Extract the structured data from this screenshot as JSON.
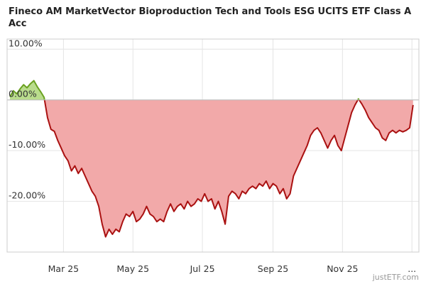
{
  "chart_data": {
    "type": "area",
    "title": "Fineco AM MarketVector Bioproduction Tech and Tools ESG UCITS ETF Class A Acc",
    "xlabel": "",
    "ylabel": "",
    "y_unit": "%",
    "ylim": [
      -30,
      12
    ],
    "y_ticks": [
      {
        "value": 10,
        "label": "10.00%"
      },
      {
        "value": 0,
        "label": "0.00%"
      },
      {
        "value": -10,
        "label": "-10.00%"
      },
      {
        "value": -20,
        "label": "-20.00%"
      }
    ],
    "x_ticks": [
      {
        "date": "2025-03-01",
        "label": "Mar 25"
      },
      {
        "date": "2025-05-01",
        "label": "May 25"
      },
      {
        "date": "2025-07-01",
        "label": "Jul 25"
      },
      {
        "date": "2025-09-01",
        "label": "Sep 25"
      },
      {
        "date": "2025-11-01",
        "label": "Nov 25"
      },
      {
        "date": "2026-01-01",
        "label": "..."
      }
    ],
    "x_range": [
      "2025-01-13",
      "2026-01-04"
    ],
    "grid": true,
    "positive_color": "#6aa120",
    "positive_fill": "#b9dc8c",
    "negative_color": "#aa1111",
    "negative_fill": "#f2a9a9",
    "series": [
      {
        "points": [
          [
            "2025-01-13",
            0.6
          ],
          [
            "2025-01-16",
            1.8
          ],
          [
            "2025-01-19",
            1.2
          ],
          [
            "2025-01-22",
            2.2
          ],
          [
            "2025-01-25",
            3.0
          ],
          [
            "2025-01-28",
            2.4
          ],
          [
            "2025-01-31",
            3.2
          ],
          [
            "2025-02-03",
            3.8
          ],
          [
            "2025-02-06",
            2.6
          ],
          [
            "2025-02-09",
            1.6
          ],
          [
            "2025-02-12",
            0.5
          ],
          [
            "2025-02-15",
            -3.5
          ],
          [
            "2025-02-18",
            -5.8
          ],
          [
            "2025-02-21",
            -6.2
          ],
          [
            "2025-02-24",
            -8.0
          ],
          [
            "2025-02-27",
            -9.5
          ],
          [
            "2025-03-02",
            -11.0
          ],
          [
            "2025-03-05",
            -12.0
          ],
          [
            "2025-03-08",
            -14.0
          ],
          [
            "2025-03-11",
            -13.0
          ],
          [
            "2025-03-14",
            -14.5
          ],
          [
            "2025-03-17",
            -13.5
          ],
          [
            "2025-03-20",
            -15.0
          ],
          [
            "2025-03-23",
            -16.5
          ],
          [
            "2025-03-26",
            -18.0
          ],
          [
            "2025-03-29",
            -19.0
          ],
          [
            "2025-04-01",
            -21.0
          ],
          [
            "2025-04-04",
            -24.5
          ],
          [
            "2025-04-07",
            -27.0
          ],
          [
            "2025-04-10",
            -25.5
          ],
          [
            "2025-04-13",
            -26.5
          ],
          [
            "2025-04-16",
            -25.5
          ],
          [
            "2025-04-19",
            -26.0
          ],
          [
            "2025-04-22",
            -24.0
          ],
          [
            "2025-04-25",
            -22.5
          ],
          [
            "2025-04-28",
            -23.0
          ],
          [
            "2025-05-01",
            -22.0
          ],
          [
            "2025-05-04",
            -24.0
          ],
          [
            "2025-05-07",
            -23.5
          ],
          [
            "2025-05-10",
            -22.5
          ],
          [
            "2025-05-13",
            -21.0
          ],
          [
            "2025-05-16",
            -22.5
          ],
          [
            "2025-05-19",
            -23.0
          ],
          [
            "2025-05-22",
            -24.0
          ],
          [
            "2025-05-25",
            -23.5
          ],
          [
            "2025-05-28",
            -24.0
          ],
          [
            "2025-05-31",
            -22.0
          ],
          [
            "2025-06-03",
            -20.5
          ],
          [
            "2025-06-06",
            -22.0
          ],
          [
            "2025-06-09",
            -21.0
          ],
          [
            "2025-06-12",
            -20.5
          ],
          [
            "2025-06-15",
            -21.5
          ],
          [
            "2025-06-18",
            -20.0
          ],
          [
            "2025-06-21",
            -21.0
          ],
          [
            "2025-06-24",
            -20.5
          ],
          [
            "2025-06-27",
            -19.5
          ],
          [
            "2025-06-30",
            -20.0
          ],
          [
            "2025-07-03",
            -18.5
          ],
          [
            "2025-07-06",
            -20.0
          ],
          [
            "2025-07-09",
            -19.5
          ],
          [
            "2025-07-12",
            -21.5
          ],
          [
            "2025-07-15",
            -20.0
          ],
          [
            "2025-07-18",
            -22.0
          ],
          [
            "2025-07-21",
            -24.5
          ],
          [
            "2025-07-24",
            -19.0
          ],
          [
            "2025-07-27",
            -18.0
          ],
          [
            "2025-07-30",
            -18.5
          ],
          [
            "2025-08-02",
            -19.5
          ],
          [
            "2025-08-05",
            -18.0
          ],
          [
            "2025-08-08",
            -18.5
          ],
          [
            "2025-08-11",
            -17.5
          ],
          [
            "2025-08-14",
            -17.0
          ],
          [
            "2025-08-17",
            -17.5
          ],
          [
            "2025-08-20",
            -16.5
          ],
          [
            "2025-08-23",
            -17.0
          ],
          [
            "2025-08-26",
            -16.0
          ],
          [
            "2025-08-29",
            -17.5
          ],
          [
            "2025-09-01",
            -16.5
          ],
          [
            "2025-09-04",
            -17.0
          ],
          [
            "2025-09-07",
            -18.5
          ],
          [
            "2025-09-10",
            -17.5
          ],
          [
            "2025-09-13",
            -19.5
          ],
          [
            "2025-09-16",
            -18.5
          ],
          [
            "2025-09-19",
            -15.0
          ],
          [
            "2025-09-22",
            -13.5
          ],
          [
            "2025-09-25",
            -12.0
          ],
          [
            "2025-09-28",
            -10.5
          ],
          [
            "2025-10-01",
            -9.0
          ],
          [
            "2025-10-04",
            -7.0
          ],
          [
            "2025-10-07",
            -6.0
          ],
          [
            "2025-10-10",
            -5.5
          ],
          [
            "2025-10-13",
            -6.5
          ],
          [
            "2025-10-16",
            -8.0
          ],
          [
            "2025-10-19",
            -9.5
          ],
          [
            "2025-10-22",
            -8.0
          ],
          [
            "2025-10-25",
            -7.0
          ],
          [
            "2025-10-28",
            -9.0
          ],
          [
            "2025-10-31",
            -10.0
          ],
          [
            "2025-11-03",
            -7.5
          ],
          [
            "2025-11-06",
            -5.0
          ],
          [
            "2025-11-09",
            -2.5
          ],
          [
            "2025-11-12",
            -1.0
          ],
          [
            "2025-11-15",
            0.2
          ],
          [
            "2025-11-18",
            -0.8
          ],
          [
            "2025-11-21",
            -2.0
          ],
          [
            "2025-11-24",
            -3.5
          ],
          [
            "2025-11-27",
            -4.5
          ],
          [
            "2025-11-30",
            -5.5
          ],
          [
            "2025-12-03",
            -6.0
          ],
          [
            "2025-12-06",
            -7.5
          ],
          [
            "2025-12-09",
            -8.0
          ],
          [
            "2025-12-12",
            -6.5
          ],
          [
            "2025-12-15",
            -6.0
          ],
          [
            "2025-12-18",
            -6.5
          ],
          [
            "2025-12-21",
            -6.0
          ],
          [
            "2025-12-24",
            -6.3
          ],
          [
            "2025-12-27",
            -6.0
          ],
          [
            "2025-12-30",
            -5.5
          ],
          [
            "2026-01-02",
            -1.0
          ]
        ]
      }
    ]
  },
  "footer": {
    "credit": "justETF.com"
  }
}
